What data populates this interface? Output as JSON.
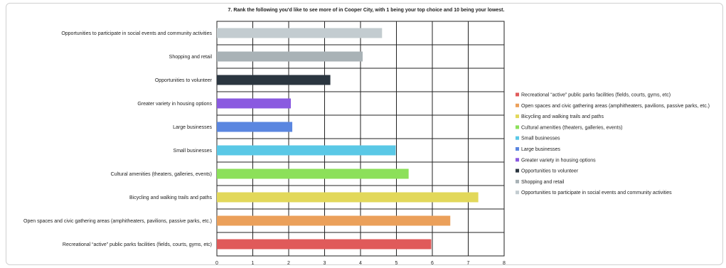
{
  "chart_data": {
    "type": "bar",
    "orientation": "horizontal",
    "title": "7. Rank the following you'd like to see more of in Cooper City, with 1 being your top choice and 10 being your lowest.",
    "xlabel": "",
    "ylabel": "",
    "xlim": [
      0,
      8
    ],
    "x_ticks": [
      "0",
      "1",
      "2",
      "3",
      "4",
      "5",
      "6",
      "7",
      "8"
    ],
    "grid": true,
    "legend_position": "right",
    "categories": [
      "Recreational “active” public parks facilities (fields, courts, gyms, etc)",
      "Open spaces and civic gathering areas (amphitheaters, pavilions, passive parks, etc.)",
      "Bicycling and walking trails and paths",
      "Cultural amenities (theaters, galleries, events)",
      "Small businesses",
      "Large businesses",
      "Greater variety in housing options",
      "Opportunities to volunteer",
      "Shopping and retail",
      "Opportunities to participate in social events and community activities"
    ],
    "values": [
      5.97,
      6.5,
      7.28,
      5.34,
      4.98,
      2.1,
      2.06,
      3.16,
      4.06,
      4.6
    ],
    "colors": [
      "#e05a5a",
      "#eba05a",
      "#e2d85a",
      "#8ce05a",
      "#5ac8e6",
      "#5a86e0",
      "#8a5ae0",
      "#2b3640",
      "#a9b2b6",
      "#c3ccd0"
    ],
    "legend": [
      "Recreational “active” public parks facilities (fields, courts, gyms, etc)",
      "Open spaces and civic gathering areas (amphitheaters, pavilions, passive parks, etc.)",
      "Bicycling and walking trails and paths",
      "Cultural amenities (theaters, galleries, events)",
      "Small businesses",
      "Large businesses",
      "Greater variety in housing options",
      "Opportunities to volunteer",
      "Shopping and retail",
      "Opportunities to participate in social events and community activities"
    ]
  }
}
